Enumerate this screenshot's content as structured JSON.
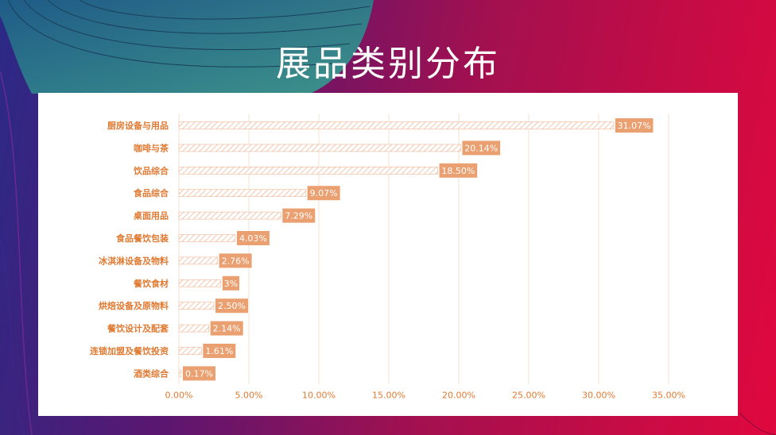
{
  "title": "展品类别分布",
  "colors": {
    "label": "#e07a32",
    "bar_stroke": "#f0b898",
    "tag_bg": "#eaa070",
    "grid": "#f3e3d3"
  },
  "chart_data": {
    "type": "bar",
    "orientation": "horizontal",
    "title": "展品类别分布",
    "categories": [
      "厨房设备与用品",
      "咖啡与茶",
      "饮品综合",
      "食品综合",
      "桌面用品",
      "食品餐饮包装",
      "冰淇淋设备及物料",
      "餐饮食材",
      "烘焙设备及原物料",
      "餐饮设计及配套",
      "连锁加盟及餐饮投资",
      "酒类综合"
    ],
    "values": [
      31.07,
      20.14,
      18.5,
      9.07,
      7.29,
      4.03,
      2.76,
      3,
      2.5,
      2.14,
      1.61,
      0.17
    ],
    "value_labels": [
      "31.07%",
      "20.14%",
      "18.50%",
      "9.07%",
      "7.29%",
      "4.03%",
      "2.76%",
      "3%",
      "2.50%",
      "2.14%",
      "1.61%",
      "0.17%"
    ],
    "xlim": [
      0,
      35
    ],
    "x_ticks": [
      0,
      5,
      10,
      15,
      20,
      25,
      30,
      35
    ],
    "x_tick_labels": [
      "0.00%",
      "5.00%",
      "10.00%",
      "15.00%",
      "20.00%",
      "25.00%",
      "30.00%",
      "35.00%"
    ],
    "grid": true,
    "legend": "none"
  }
}
